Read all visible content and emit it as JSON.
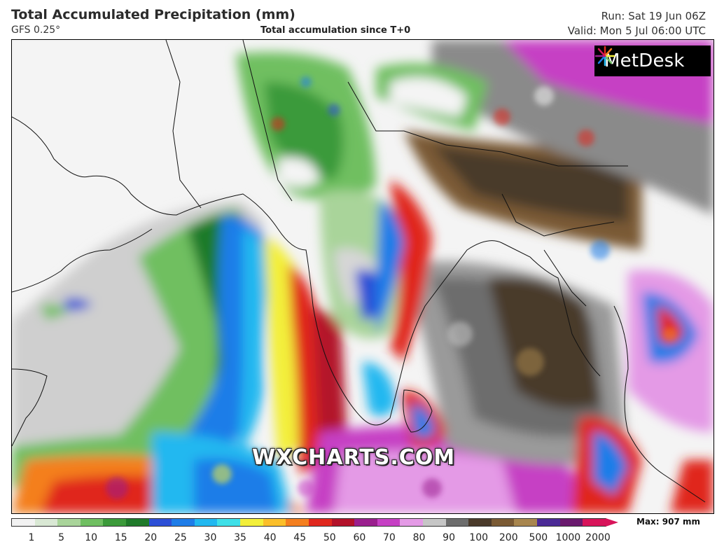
{
  "header": {
    "title": "Total Accumulated Precipitation (mm)",
    "model": "GFS 0.25°",
    "subtitle": "Total accumulation since T+0",
    "run": "Run: Sat 19 Jun 06Z",
    "valid": "Valid: Mon 5 Jul 06:00 UTC"
  },
  "logo": {
    "text": "MetDesk",
    "icon": "metdesk-starburst-icon"
  },
  "watermark": "WXCHARTS.COM",
  "legend": {
    "max_label": "Max: 907 mm",
    "ticks": [
      "1",
      "5",
      "10",
      "15",
      "20",
      "25",
      "30",
      "35",
      "40",
      "45",
      "50",
      "60",
      "70",
      "80",
      "90",
      "100",
      "200",
      "500",
      "1000",
      "2000"
    ],
    "colors": [
      "#f2f2f2",
      "#d9e8d4",
      "#a9d49a",
      "#6fbf61",
      "#3b9a3a",
      "#1f7a2a",
      "#2c4fd6",
      "#1e7de8",
      "#21b8f0",
      "#3fe0e8",
      "#f3ef3a",
      "#fbbf2a",
      "#f47f1f",
      "#e0281e",
      "#b3122a",
      "#9a1f8e",
      "#c640c4",
      "#e49ae6",
      "#c6c6c6",
      "#6d6d6d",
      "#4a3a2a",
      "#7a5a34",
      "#a8864e",
      "#4b2a96",
      "#6a1a6e",
      "#d8145a"
    ]
  }
}
